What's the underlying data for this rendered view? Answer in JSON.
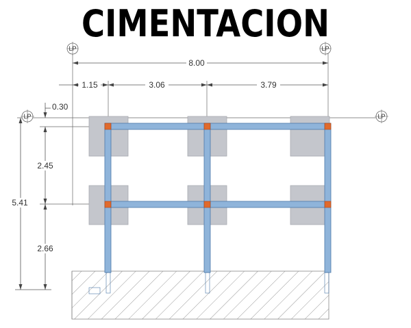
{
  "title": "CIMENTACION",
  "grid_label": "LP",
  "dimensions": {
    "total_width": "8.00",
    "span_1": "1.15",
    "span_2": "3.06",
    "span_3": "3.79",
    "offset": "0.30",
    "total_height": "5.41",
    "height_1": "2.45",
    "height_2": "2.66"
  },
  "colors": {
    "footing": "#c4c6cc",
    "beam": "#8fb4da",
    "beam_edge": "#4a77a8",
    "column": "#e06a2c",
    "hatch": "#999999",
    "dim_line": "#555555"
  }
}
